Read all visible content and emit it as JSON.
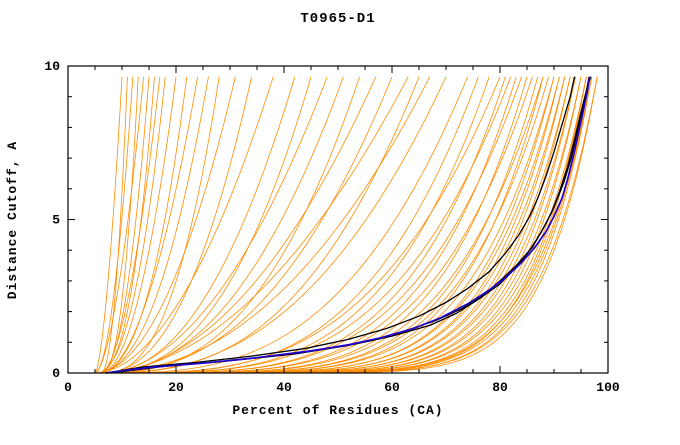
{
  "title": "T0965-D1",
  "colors": {
    "model_line": "#FF8C00",
    "highlight_blue": "#2200CC",
    "highlight_black": "#000000",
    "axis": "#000000",
    "background": "#FFFFFF"
  },
  "chart_data": {
    "type": "line",
    "title": "T0965-D1",
    "xlabel": "Percent of Residues (CA)",
    "ylabel": "Distance Cutoff, A",
    "xlim": [
      0,
      100
    ],
    "ylim": [
      0,
      10
    ],
    "x_major_ticks": [
      0,
      20,
      40,
      60,
      80,
      100
    ],
    "x_minor_step": 5,
    "y_major_ticks": [
      0,
      5,
      10
    ],
    "y_minor_step": 1,
    "grid": false,
    "legend": "none",
    "max_plotted_cutoff": 9.65,
    "description": "CASP GDT-style plot: cumulative percent of CA residues (x) under a distance cutoff in Angstroms (y) for ~100 predicted models (orange), reference/selected models (black) and best model (blue). Orange curves are encoded as [start_percent_at_0A, percent_at_10A, shape_exponent]; curve is p(u)=p0+(pmax-p0)*u, d(u)=10*(u*tmax)^k.",
    "orange_curve_params": [
      [
        5,
        10,
        1.6
      ],
      [
        6,
        11,
        2.2
      ],
      [
        5,
        12,
        1.9
      ],
      [
        6,
        13,
        2.5
      ],
      [
        5,
        14,
        1.7
      ],
      [
        6,
        15,
        2.1
      ],
      [
        5,
        16,
        2.6
      ],
      [
        6,
        17,
        1.8
      ],
      [
        5,
        18,
        2.3
      ],
      [
        6,
        20,
        2.0
      ],
      [
        5,
        22,
        2.4
      ],
      [
        6,
        24,
        1.9
      ],
      [
        5,
        26,
        2.2
      ],
      [
        6,
        28,
        2.6
      ],
      [
        5,
        31,
        2.0
      ],
      [
        6,
        34,
        2.3
      ],
      [
        5,
        38,
        1.9
      ],
      [
        6,
        42,
        2.2
      ],
      [
        5,
        45,
        2.5
      ],
      [
        6,
        48,
        2.0
      ],
      [
        5,
        51,
        2.3
      ],
      [
        6,
        54,
        2.6
      ],
      [
        5,
        57,
        2.1
      ],
      [
        6,
        60,
        2.4
      ],
      [
        5,
        63,
        2.0
      ],
      [
        6,
        65,
        2.7
      ],
      [
        5,
        67,
        2.2
      ],
      [
        6,
        70,
        2.5
      ],
      [
        6,
        74,
        3.0
      ],
      [
        7,
        76,
        3.4
      ],
      [
        6,
        78,
        3.8
      ],
      [
        7,
        80,
        3.2
      ],
      [
        6,
        81,
        4.2
      ],
      [
        7,
        82,
        3.6
      ],
      [
        6,
        83,
        4.6
      ],
      [
        7,
        84,
        4.0
      ],
      [
        6,
        85,
        5.0
      ],
      [
        7,
        86,
        4.4
      ],
      [
        6,
        87,
        5.4
      ],
      [
        7,
        88,
        4.8
      ],
      [
        6,
        88,
        5.8
      ],
      [
        7,
        89,
        5.2
      ],
      [
        6,
        90,
        6.2
      ],
      [
        7,
        90,
        5.6
      ],
      [
        6,
        91,
        6.6
      ],
      [
        7,
        91,
        6.0
      ],
      [
        6,
        92,
        7.0
      ],
      [
        7,
        92,
        6.4
      ],
      [
        6,
        93,
        7.4
      ],
      [
        7,
        93,
        6.8
      ],
      [
        6,
        94,
        7.8
      ],
      [
        7,
        94,
        7.2
      ],
      [
        6,
        95,
        8.2
      ],
      [
        7,
        95,
        7.6
      ],
      [
        6,
        96,
        8.6
      ],
      [
        7,
        96,
        8.0
      ],
      [
        6,
        96,
        9.0
      ],
      [
        7,
        97,
        8.4
      ],
      [
        6,
        97,
        9.4
      ],
      [
        7,
        97,
        8.8
      ],
      [
        6,
        98,
        9.2
      ],
      [
        7,
        98,
        9.6
      ]
    ],
    "highlight_curves": [
      {
        "name": "black-model-1",
        "color_key": "highlight_black",
        "width": 1.3,
        "points": [
          [
            8,
            0
          ],
          [
            16,
            0.2
          ],
          [
            27,
            0.35
          ],
          [
            38,
            0.55
          ],
          [
            48,
            0.8
          ],
          [
            56,
            1.05
          ],
          [
            62,
            1.35
          ],
          [
            68,
            1.7
          ],
          [
            73,
            2.1
          ],
          [
            77,
            2.55
          ],
          [
            80,
            3.0
          ],
          [
            83,
            3.5
          ],
          [
            85.5,
            4.0
          ],
          [
            87.5,
            4.55
          ],
          [
            89.5,
            5.2
          ],
          [
            91,
            5.9
          ],
          [
            92.5,
            6.7
          ],
          [
            93.8,
            7.6
          ],
          [
            95,
            8.5
          ],
          [
            96,
            9.2
          ],
          [
            96.8,
            9.65
          ]
        ]
      },
      {
        "name": "black-model-2",
        "color_key": "highlight_black",
        "width": 1.3,
        "points": [
          [
            7,
            0
          ],
          [
            14,
            0.2
          ],
          [
            24,
            0.35
          ],
          [
            34,
            0.55
          ],
          [
            44,
            0.8
          ],
          [
            52,
            1.1
          ],
          [
            59,
            1.45
          ],
          [
            65,
            1.85
          ],
          [
            70,
            2.3
          ],
          [
            74,
            2.75
          ],
          [
            78,
            3.3
          ],
          [
            81,
            3.9
          ],
          [
            83.5,
            4.5
          ],
          [
            85.5,
            5.1
          ],
          [
            87,
            5.7
          ],
          [
            88.5,
            6.4
          ],
          [
            90,
            7.2
          ],
          [
            91.5,
            8.1
          ],
          [
            93,
            9.0
          ],
          [
            93.8,
            9.65
          ]
        ]
      },
      {
        "name": "black-model-3",
        "color_key": "highlight_black",
        "width": 1.3,
        "points": [
          [
            8,
            0
          ],
          [
            18,
            0.22
          ],
          [
            30,
            0.4
          ],
          [
            42,
            0.62
          ],
          [
            52,
            0.9
          ],
          [
            60,
            1.2
          ],
          [
            67,
            1.55
          ],
          [
            72,
            1.95
          ],
          [
            76,
            2.4
          ],
          [
            80,
            2.9
          ],
          [
            83,
            3.45
          ],
          [
            86,
            4.1
          ],
          [
            88,
            4.7
          ],
          [
            90,
            5.4
          ],
          [
            91.8,
            6.2
          ],
          [
            93.2,
            7.0
          ],
          [
            94.5,
            8.0
          ],
          [
            95.8,
            9.0
          ],
          [
            96.5,
            9.65
          ]
        ]
      },
      {
        "name": "best-model-blue",
        "color_key": "highlight_blue",
        "width": 1.7,
        "points": [
          [
            7,
            0
          ],
          [
            15,
            0.18
          ],
          [
            25,
            0.32
          ],
          [
            35,
            0.5
          ],
          [
            45,
            0.72
          ],
          [
            52,
            0.92
          ],
          [
            58,
            1.15
          ],
          [
            64,
            1.45
          ],
          [
            69,
            1.8
          ],
          [
            74,
            2.25
          ],
          [
            78,
            2.7
          ],
          [
            81,
            3.1
          ],
          [
            84,
            3.6
          ],
          [
            86.5,
            4.1
          ],
          [
            88.5,
            4.6
          ],
          [
            90,
            5.1
          ],
          [
            91.5,
            5.7
          ],
          [
            92.5,
            6.3
          ],
          [
            93.5,
            7.0
          ],
          [
            94.5,
            7.8
          ],
          [
            95.5,
            8.6
          ],
          [
            96.2,
            9.2
          ],
          [
            96.6,
            9.65
          ]
        ]
      }
    ]
  }
}
